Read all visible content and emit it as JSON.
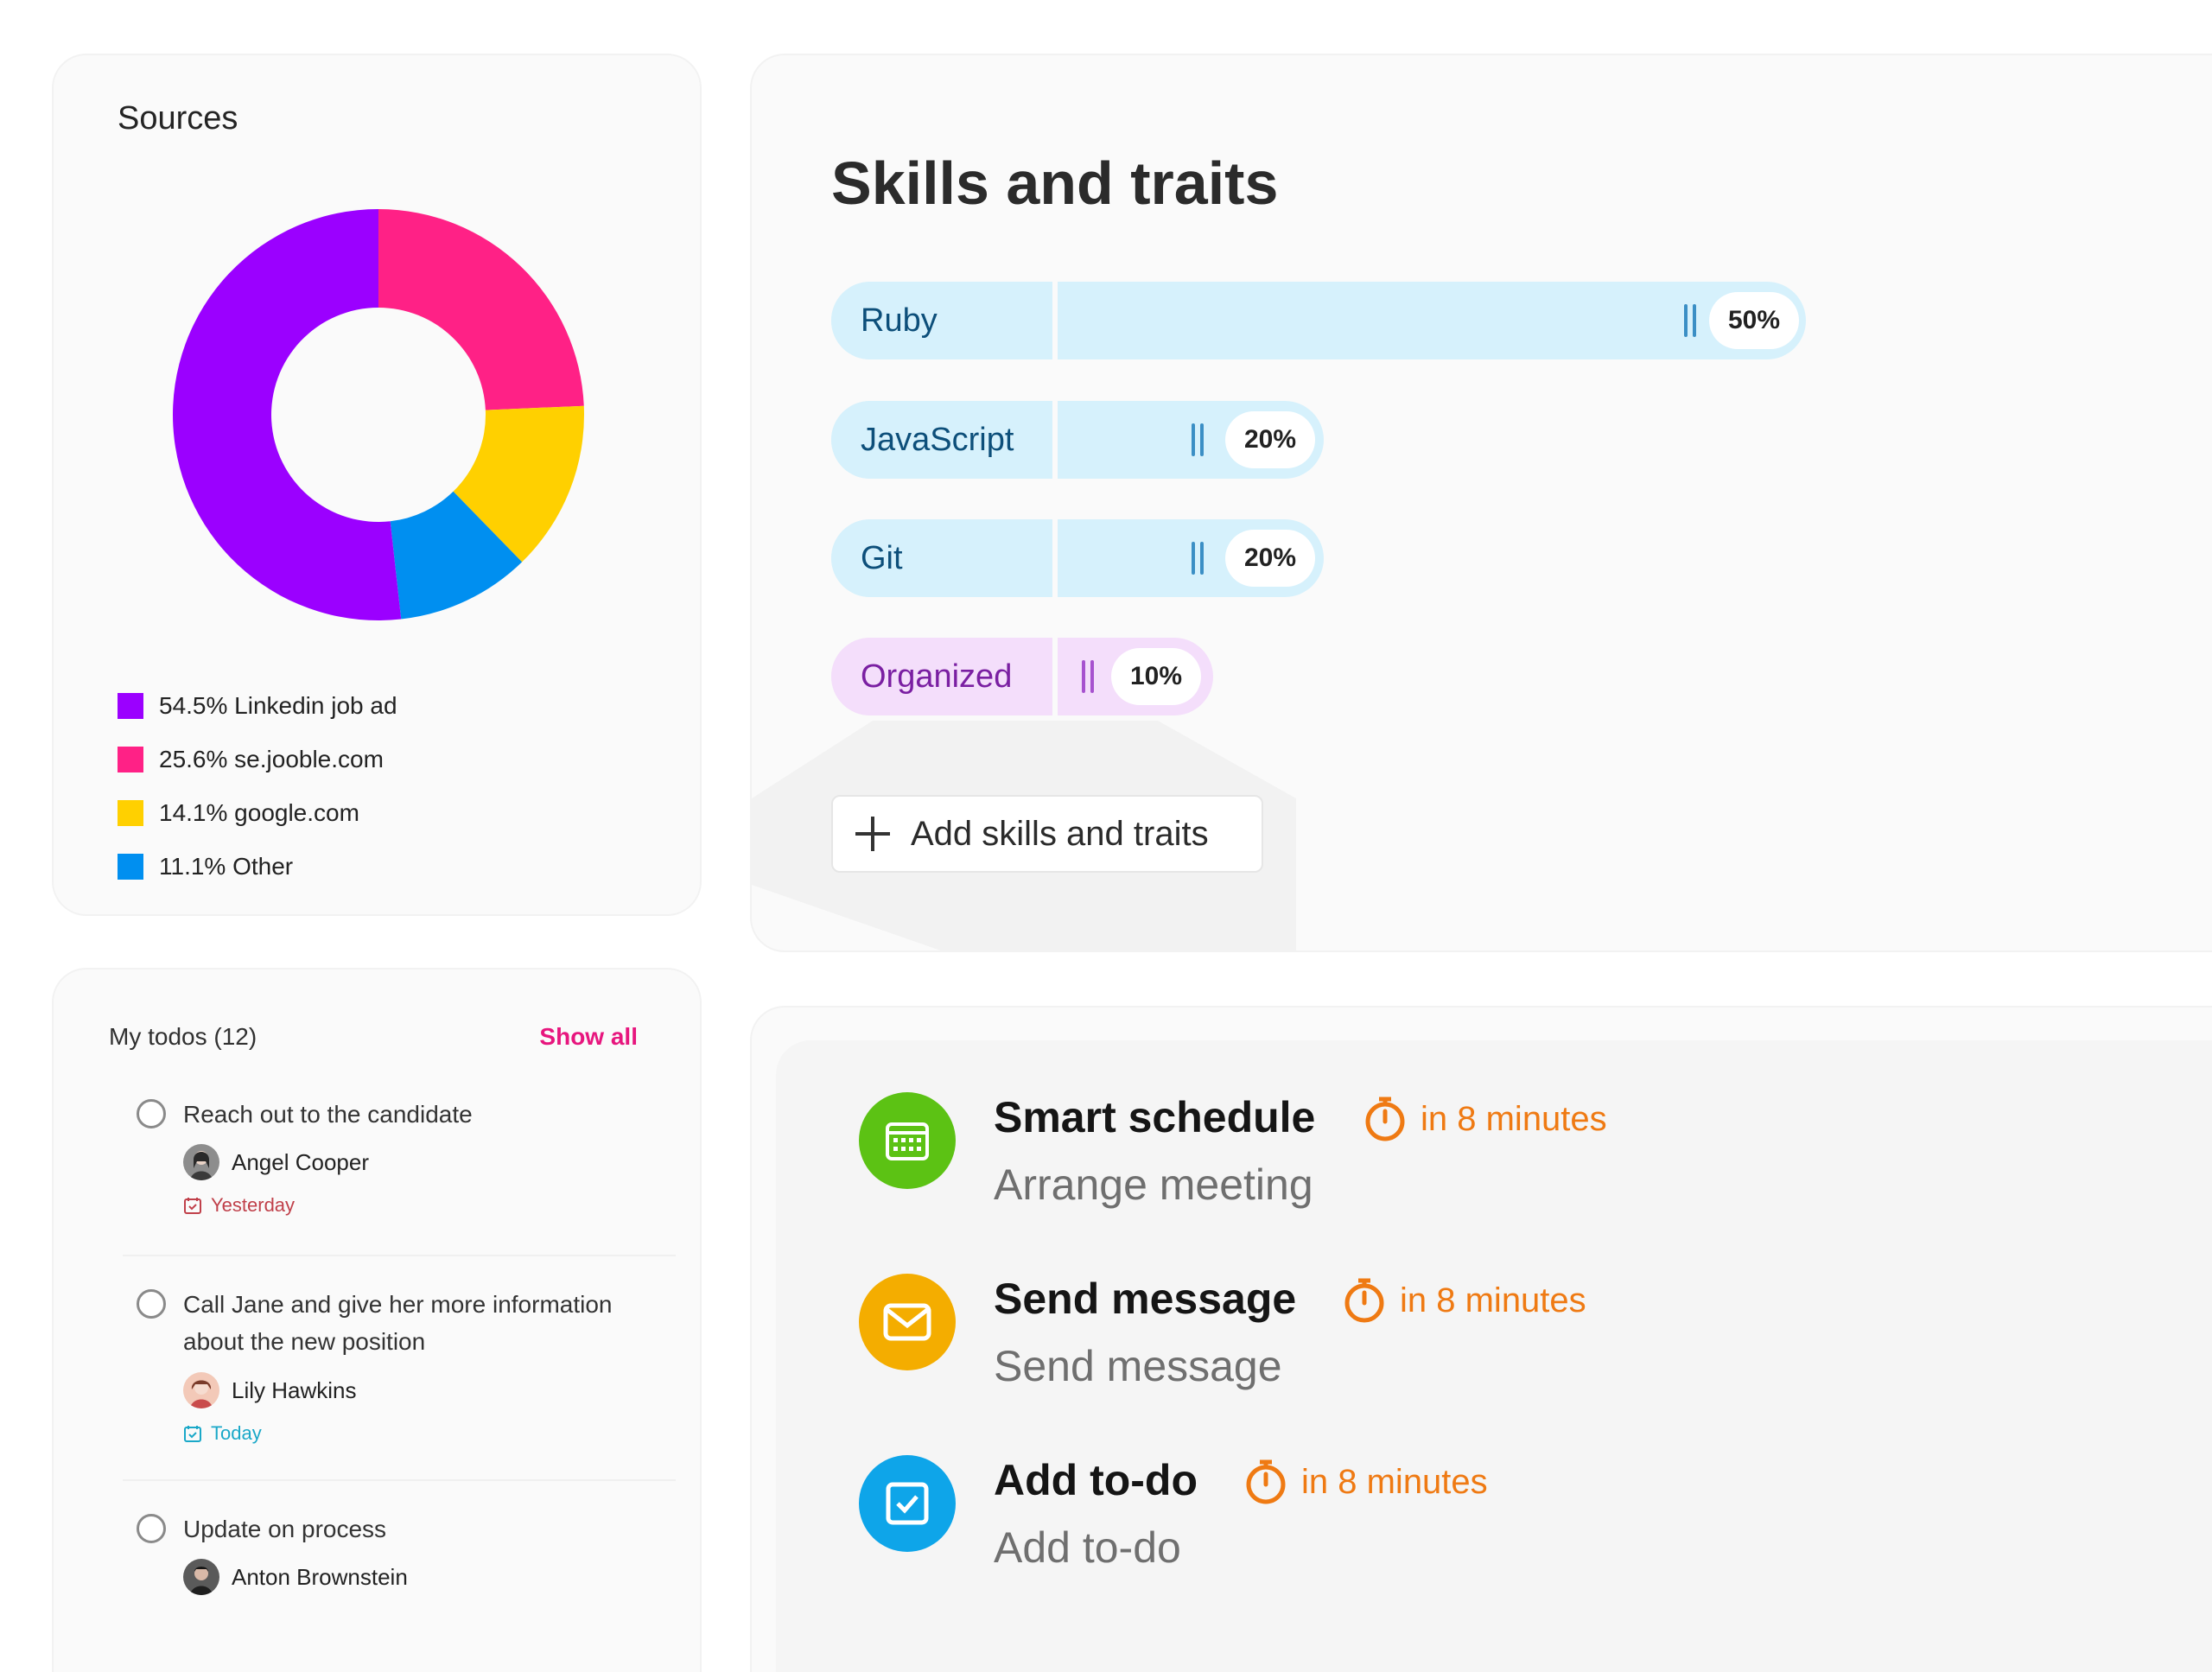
{
  "sources": {
    "title": "Sources",
    "legend": [
      {
        "label": "54.5% Linkedin job ad",
        "color": "#9b00ff"
      },
      {
        "label": "25.6% se.jooble.com",
        "color": "#ff2186"
      },
      {
        "label": "14.1% google.com",
        "color": "#ffd000"
      },
      {
        "label": "11.1% Other",
        "color": "#008ff0"
      }
    ]
  },
  "chart_data": {
    "type": "pie",
    "title": "Sources",
    "categories": [
      "Linkedin job ad",
      "se.jooble.com",
      "google.com",
      "Other"
    ],
    "values": [
      54.5,
      25.6,
      14.1,
      11.1
    ],
    "colors": [
      "#9b00ff",
      "#ff2186",
      "#ffd000",
      "#008ff0"
    ],
    "donut": true,
    "legend": "bottom-left"
  },
  "skills": {
    "title": "Skills and traits",
    "items": [
      {
        "name": "Ruby",
        "percent": "50%",
        "value": 50,
        "kind": "tech"
      },
      {
        "name": "JavaScript",
        "percent": "20%",
        "value": 20,
        "kind": "tech"
      },
      {
        "name": "Git",
        "percent": "20%",
        "value": 20,
        "kind": "tech"
      },
      {
        "name": "Organized",
        "percent": "10%",
        "value": 10,
        "kind": "trait"
      }
    ],
    "add_label": "Add skills and traits"
  },
  "todos": {
    "title": "My todos (12)",
    "show_all": "Show all",
    "items": [
      {
        "text": "Reach out to the candidate",
        "assignee": "Angel Cooper",
        "due": "Yesterday",
        "due_color": "#c0404a"
      },
      {
        "text": "Call Jane and give her more information about the new position",
        "assignee": "Lily Hawkins",
        "due": "Today",
        "due_color": "#1aa8c8"
      },
      {
        "text": "Update on process",
        "assignee": "Anton Brownstein",
        "due": "",
        "due_color": ""
      }
    ]
  },
  "actions": {
    "items": [
      {
        "title": "Smart schedule",
        "timer": "in 8 minutes",
        "subtitle": "Arrange meeting",
        "icon": "calendar-icon",
        "color": "#5cc214"
      },
      {
        "title": "Send message",
        "timer": "in 8 minutes",
        "subtitle": "Send message",
        "icon": "envelope-icon",
        "color": "#f4ad00"
      },
      {
        "title": "Add to-do",
        "timer": "in 8 minutes",
        "subtitle": "Add to-do",
        "icon": "checkbox-icon",
        "color": "#0ea5e9"
      }
    ]
  }
}
